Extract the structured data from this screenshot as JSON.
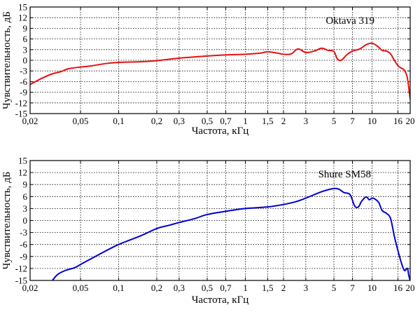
{
  "chart_data": [
    {
      "type": "line",
      "legend": "Oktava 319",
      "legend_position": "top-right",
      "xlabel": "Частота, кГц",
      "ylabel": "Чувствительность, дБ",
      "x_scale": "log",
      "xlim": [
        0.02,
        20
      ],
      "ylim": [
        -15,
        15
      ],
      "grid": true,
      "x_ticks": [
        0.02,
        0.05,
        0.1,
        0.2,
        0.3,
        0.5,
        0.7,
        1,
        1.5,
        2,
        3,
        5,
        7,
        10,
        16,
        20
      ],
      "x_tick_labels": [
        "0,02",
        "0,05",
        "0,1",
        "0,2",
        "0,3",
        "0,5",
        "0,7",
        "1",
        "1,5",
        "2",
        "3",
        "5",
        "7",
        "10",
        "16",
        "20"
      ],
      "y_ticks": [
        -15,
        -12,
        -9,
        -6,
        -3,
        0,
        3,
        6,
        9,
        12,
        15
      ],
      "y_tick_labels": [
        "-15",
        "-12",
        "-9",
        "-6",
        "-3",
        "0",
        "3",
        "6",
        "9",
        "12",
        "15"
      ],
      "color": "#e8100f",
      "series": [
        {
          "name": "Oktava 319",
          "x": [
            0.02,
            0.025,
            0.03,
            0.035,
            0.04,
            0.05,
            0.06,
            0.08,
            0.1,
            0.15,
            0.2,
            0.3,
            0.5,
            0.7,
            1,
            1.3,
            1.5,
            1.8,
            2,
            2.3,
            2.6,
            3,
            3.5,
            4,
            4.5,
            5,
            5.3,
            5.7,
            6.3,
            7,
            8,
            9,
            10,
            11,
            12,
            13,
            14,
            15,
            16,
            17,
            18,
            19,
            20
          ],
          "y": [
            -6.8,
            -5.0,
            -3.8,
            -3.2,
            -2.4,
            -1.9,
            -1.6,
            -0.9,
            -0.6,
            -0.4,
            -0.1,
            0.6,
            1.2,
            1.5,
            1.7,
            2.0,
            2.4,
            2.0,
            1.7,
            1.8,
            3.2,
            2.2,
            2.6,
            3.4,
            2.8,
            2.5,
            0.5,
            0.0,
            1.5,
            2.6,
            3.2,
            4.4,
            4.8,
            4.0,
            2.8,
            2.6,
            1.8,
            0.0,
            -1.5,
            -2.2,
            -2.8,
            -5.0,
            -11.0
          ]
        }
      ]
    },
    {
      "type": "line",
      "legend": "Shure SM58",
      "legend_position": "top-right",
      "xlabel": "Частота, кГц",
      "ylabel": "Чувствительность, дБ",
      "x_scale": "log",
      "xlim": [
        0.02,
        20
      ],
      "ylim": [
        -15,
        15
      ],
      "grid": true,
      "x_ticks": [
        0.02,
        0.05,
        0.1,
        0.2,
        0.3,
        0.5,
        0.7,
        1,
        1.5,
        2,
        3,
        5,
        7,
        10,
        16,
        20
      ],
      "x_tick_labels": [
        "0,02",
        "0,05",
        "0,1",
        "0,2",
        "0,3",
        "0,5",
        "0,7",
        "1",
        "1,5",
        "2",
        "3",
        "5",
        "7",
        "10",
        "16",
        "20"
      ],
      "y_ticks": [
        -15,
        -12,
        -9,
        -6,
        -3,
        0,
        3,
        6,
        9,
        12,
        15
      ],
      "y_tick_labels": [
        "-15",
        "-12",
        "-9",
        "-6",
        "-3",
        "0",
        "3",
        "6",
        "9",
        "12",
        "15"
      ],
      "color": "#0000d0",
      "series": [
        {
          "name": "Shure SM58",
          "x": [
            0.03,
            0.033,
            0.038,
            0.045,
            0.05,
            0.07,
            0.1,
            0.15,
            0.2,
            0.25,
            0.3,
            0.4,
            0.5,
            0.7,
            1,
            1.5,
            2,
            2.5,
            3,
            4,
            5,
            5.5,
            6,
            6.7,
            7.3,
            7.8,
            8.3,
            9,
            9.5,
            10,
            10.5,
            11.3,
            12,
            13,
            14,
            15,
            16,
            17,
            18,
            19,
            19.5,
            20
          ],
          "y": [
            -15,
            -13.5,
            -12.5,
            -11.8,
            -11.0,
            -8.5,
            -6.0,
            -3.8,
            -2.0,
            -1.2,
            -0.5,
            0.5,
            1.5,
            2.3,
            3.0,
            3.4,
            4.0,
            4.7,
            5.6,
            7.2,
            8.0,
            7.8,
            7.0,
            6.5,
            3.6,
            3.4,
            4.9,
            5.9,
            5.2,
            5.6,
            5.4,
            4.5,
            2.5,
            1.8,
            0.5,
            -4.0,
            -7.5,
            -10.5,
            -12.5,
            -12.0,
            -13.8,
            -15
          ]
        }
      ]
    }
  ]
}
